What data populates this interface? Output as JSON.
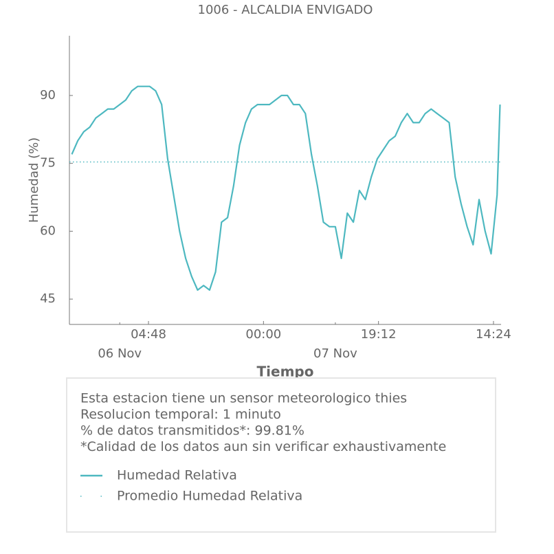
{
  "chart_data": {
    "type": "line",
    "title": "1006 - ALCALDIA ENVIGADO",
    "xlabel": "Tiempo",
    "ylabel": "Humedad (%)",
    "x": [
      "05 Nov 16:00",
      "05 Nov 17:00",
      "05 Nov 18:00",
      "05 Nov 19:00",
      "05 Nov 20:00",
      "05 Nov 21:00",
      "05 Nov 22:00",
      "05 Nov 23:00",
      "06 Nov 00:00",
      "06 Nov 01:00",
      "06 Nov 02:00",
      "06 Nov 03:00",
      "06 Nov 04:00",
      "06 Nov 05:00",
      "06 Nov 06:00",
      "06 Nov 07:00",
      "06 Nov 08:00",
      "06 Nov 09:00",
      "06 Nov 10:00",
      "06 Nov 11:00",
      "06 Nov 12:00",
      "06 Nov 13:00",
      "06 Nov 14:00",
      "06 Nov 15:00",
      "06 Nov 16:00",
      "06 Nov 17:00",
      "06 Nov 18:00",
      "06 Nov 19:00",
      "06 Nov 20:00",
      "06 Nov 21:00",
      "06 Nov 22:00",
      "06 Nov 23:00",
      "07 Nov 00:00",
      "07 Nov 01:00",
      "07 Nov 02:00",
      "07 Nov 03:00",
      "07 Nov 04:00",
      "07 Nov 05:00",
      "07 Nov 06:00",
      "07 Nov 07:00",
      "07 Nov 08:00",
      "07 Nov 09:00",
      "07 Nov 10:00",
      "07 Nov 11:00",
      "07 Nov 12:00",
      "07 Nov 13:00",
      "07 Nov 14:00",
      "07 Nov 15:00",
      "07 Nov 16:00",
      "07 Nov 17:00",
      "07 Nov 18:00",
      "07 Nov 19:00",
      "07 Nov 20:00",
      "07 Nov 21:00",
      "07 Nov 22:00",
      "07 Nov 23:00",
      "08 Nov 00:00",
      "08 Nov 01:00",
      "08 Nov 02:00",
      "08 Nov 03:00",
      "08 Nov 04:00",
      "08 Nov 05:00",
      "08 Nov 06:00",
      "08 Nov 07:00",
      "08 Nov 08:00",
      "08 Nov 09:00",
      "08 Nov 10:00",
      "08 Nov 11:00",
      "08 Nov 12:00",
      "08 Nov 13:00",
      "08 Nov 14:00",
      "08 Nov 15:00",
      "08 Nov 15:30"
    ],
    "series": [
      {
        "name": "Humedad Relativa",
        "color": "#4db8c0",
        "values": [
          77,
          80,
          82,
          83,
          85,
          86,
          87,
          87,
          88,
          89,
          91,
          92,
          92,
          92,
          91,
          88,
          76,
          68,
          60,
          54,
          50,
          47,
          48,
          47,
          51,
          62,
          63,
          70,
          79,
          84,
          87,
          88,
          88,
          88,
          89,
          90,
          90,
          88,
          88,
          86,
          77,
          70,
          62,
          61,
          61,
          54,
          64,
          62,
          69,
          67,
          72,
          76,
          78,
          80,
          81,
          84,
          86,
          84,
          84,
          86,
          87,
          86,
          85,
          84,
          72,
          66,
          61,
          57,
          67,
          60,
          55,
          68,
          88
        ]
      }
    ],
    "mean": {
      "name": "Promedio Humedad Relativa",
      "color": "#4db8c0",
      "value": 75.3
    },
    "xlim": [
      "05 Nov 15:36",
      "08 Nov 15:40"
    ],
    "xticks": [
      {
        "value": "06 Nov 04:48",
        "label": "04:48"
      },
      {
        "value": "07 Nov 00:00",
        "label": "00:00"
      },
      {
        "value": "07 Nov 19:12",
        "label": "19:12"
      },
      {
        "value": "08 Nov 14:24",
        "label": "14:24"
      }
    ],
    "x_minor_ticks": [
      {
        "value": "06 Nov 00:00",
        "label": "06 Nov"
      },
      {
        "value": "07 Nov 12:00",
        "label": "07 Nov"
      }
    ],
    "ylim": [
      39.4,
      103.2
    ],
    "yticks": [
      45,
      60,
      75,
      90
    ],
    "info": [
      "Esta estacion tiene un sensor meteorologico thies",
      "Resolucion temporal: 1 minuto",
      "% de datos transmitidos*: 99.81%",
      "*Calidad de los datos aun sin verificar exhaustivamente"
    ]
  }
}
